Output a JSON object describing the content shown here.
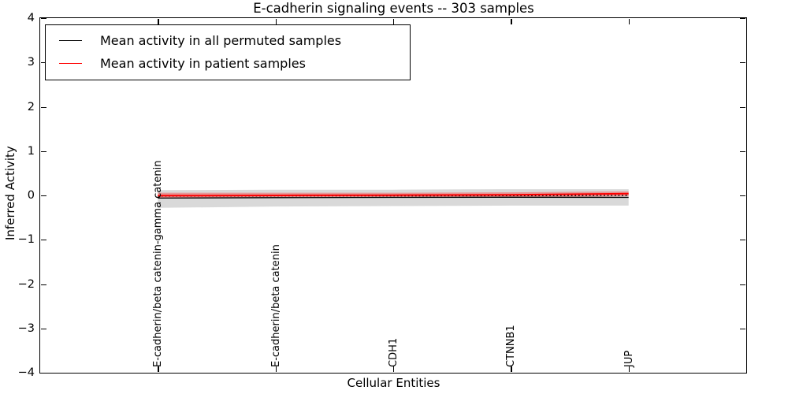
{
  "figure": {
    "background": "#ffffff"
  },
  "chart_data": {
    "type": "line",
    "title": "E-cadherin signaling events -- 303 samples",
    "xlabel": "Cellular Entities",
    "ylabel": "Inferred Activity",
    "xlim": [
      0,
      6
    ],
    "ylim": [
      -4,
      4
    ],
    "grid": false,
    "legend_position": "upper left",
    "yticks": [
      4,
      3,
      2,
      1,
      0,
      -1,
      -2,
      -3,
      -4
    ],
    "ytick_labels": [
      "4",
      "3",
      "2",
      "1",
      "0",
      "−1",
      "−2",
      "−3",
      "−4"
    ],
    "categories": [
      "E-cadherin/beta catenin-gamma catenin",
      "E-cadherin/beta catenin",
      "CDH1",
      "CTNNB1",
      "JUP"
    ],
    "x": [
      1,
      2,
      3,
      4,
      5
    ],
    "series": [
      {
        "name": "Mean activity in all permuted samples",
        "color": "#000000",
        "style": "solid",
        "width": 1.3,
        "values": [
          -0.06,
          -0.05,
          -0.045,
          -0.04,
          -0.045
        ]
      },
      {
        "name": "Permuted samples dotted guide",
        "color": "#000000",
        "style": "dotted",
        "width": 1.4,
        "values": [
          -0.015,
          -0.01,
          -0.01,
          -0.005,
          0.0
        ]
      },
      {
        "name": "Mean activity in patient samples",
        "color": "#ff0000",
        "style": "solid",
        "width": 2,
        "values": [
          -0.005,
          0.0,
          0.005,
          0.015,
          0.04
        ]
      }
    ],
    "bands": [
      {
        "name": "permuted-std-band",
        "color": "#aaaaaa",
        "opacity": 0.45,
        "upper": [
          0.12,
          0.13,
          0.13,
          0.14,
          0.14
        ],
        "lower": [
          -0.28,
          -0.25,
          -0.24,
          -0.23,
          -0.23
        ]
      },
      {
        "name": "patient-std-band",
        "color": "#ff0000",
        "opacity": 0.3,
        "upper": [
          0.06,
          0.06,
          0.06,
          0.07,
          0.09
        ],
        "lower": [
          -0.06,
          -0.06,
          -0.05,
          -0.04,
          -0.02
        ]
      }
    ],
    "legend": {
      "entries": [
        {
          "label": "Mean activity in all permuted samples",
          "color": "#000000"
        },
        {
          "label": "Mean activity in patient samples",
          "color": "#ff0000"
        }
      ]
    }
  }
}
